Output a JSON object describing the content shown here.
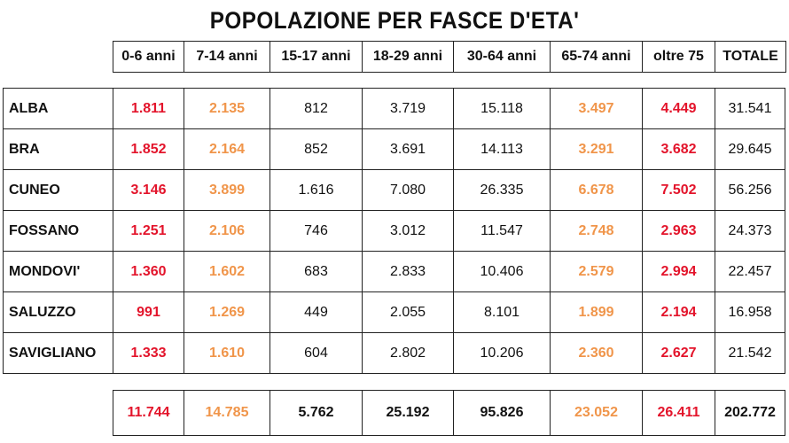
{
  "title": "POPOLAZIONE PER FASCE D'ETA'",
  "columns": [
    "0-6 anni",
    "7-14 anni",
    "15-17 anni",
    "18-29 anni",
    "30-64 anni",
    "65-74 anni",
    "oltre 75",
    "TOTALE"
  ],
  "rows": [
    {
      "name": "ALBA",
      "values": [
        "1.811",
        "2.135",
        "812",
        "3.719",
        "15.118",
        "3.497",
        "4.449",
        "31.541"
      ]
    },
    {
      "name": "BRA",
      "values": [
        "1.852",
        "2.164",
        "852",
        "3.691",
        "14.113",
        "3.291",
        "3.682",
        "29.645"
      ]
    },
    {
      "name": "CUNEO",
      "values": [
        "3.146",
        "3.899",
        "1.616",
        "7.080",
        "26.335",
        "6.678",
        "7.502",
        "56.256"
      ]
    },
    {
      "name": "FOSSANO",
      "values": [
        "1.251",
        "2.106",
        "746",
        "3.012",
        "11.547",
        "2.748",
        "2.963",
        "24.373"
      ]
    },
    {
      "name": "MONDOVI'",
      "values": [
        "1.360",
        "1.602",
        "683",
        "2.833",
        "10.406",
        "2.579",
        "2.994",
        "22.457"
      ]
    },
    {
      "name": "SALUZZO",
      "values": [
        "991",
        "1.269",
        "449",
        "2.055",
        "8.101",
        "1.899",
        "2.194",
        "16.958"
      ]
    },
    {
      "name": "SAVIGLIANO",
      "values": [
        "1.333",
        "1.610",
        "604",
        "2.802",
        "10.206",
        "2.360",
        "2.627",
        "21.542"
      ]
    }
  ],
  "totals": [
    "11.744",
    "14.785",
    "5.762",
    "25.192",
    "95.826",
    "23.052",
    "26.411",
    "202.772"
  ],
  "colors": {
    "red": "#e3142b",
    "orange": "#f0954a",
    "text": "#111111",
    "border": "#222222"
  }
}
